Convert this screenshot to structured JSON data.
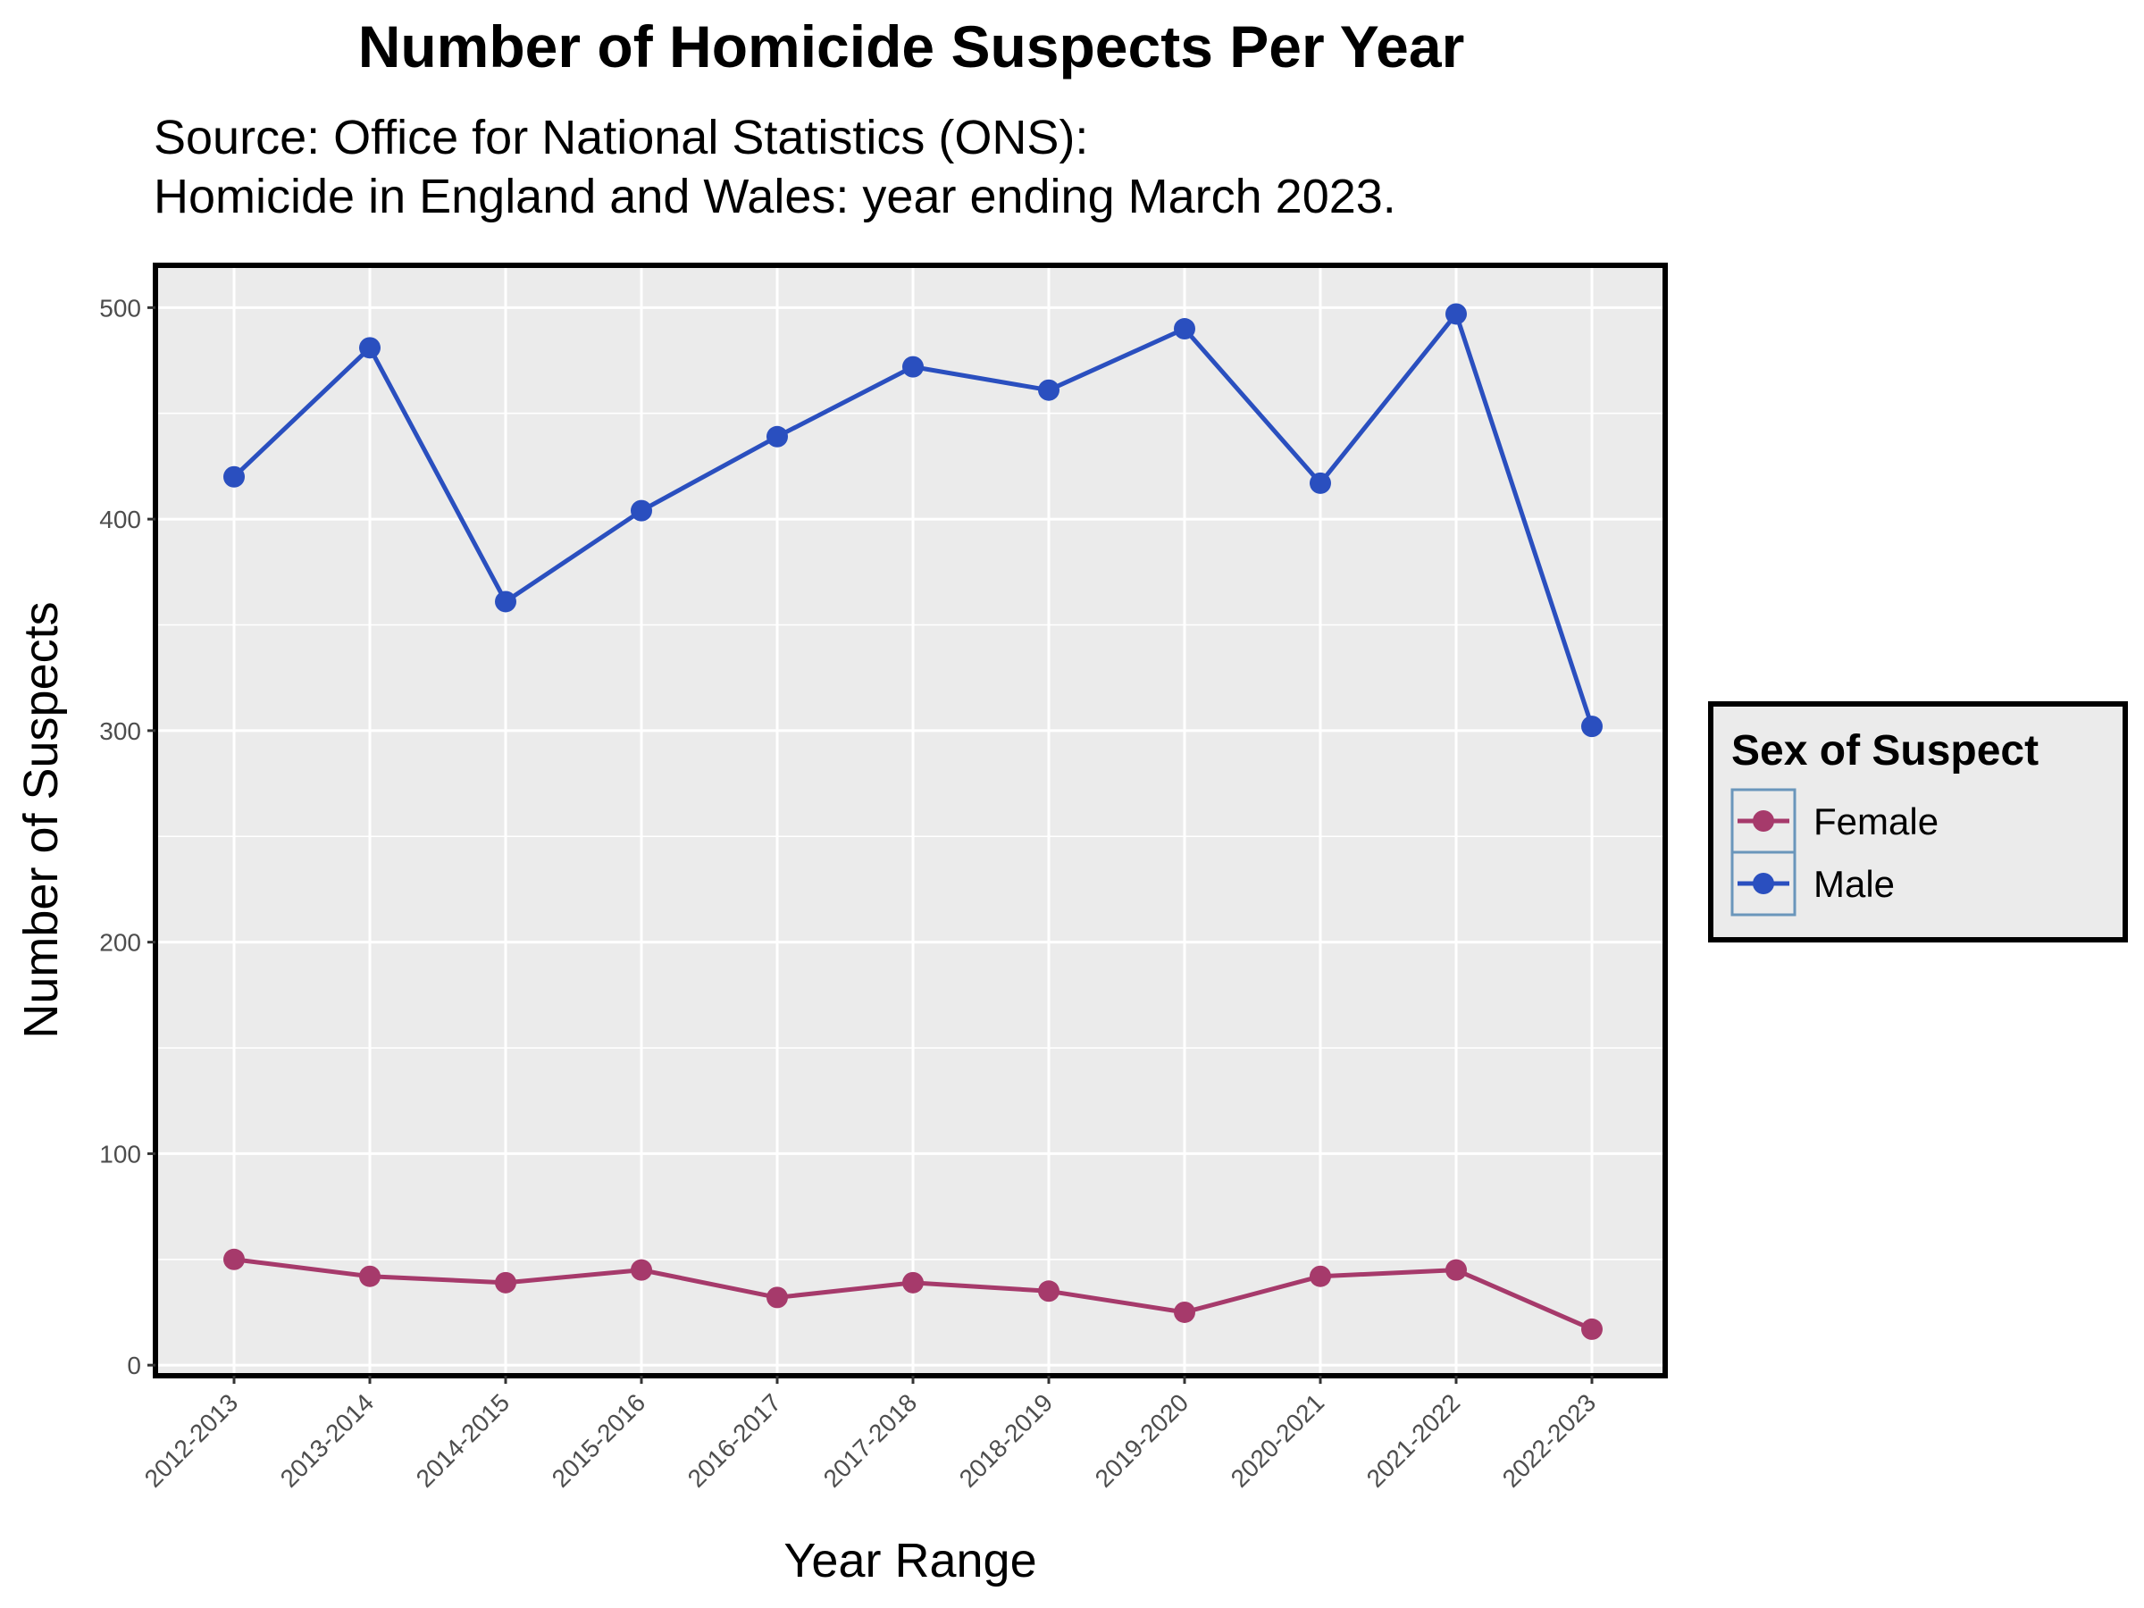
{
  "chart_data": {
    "type": "line",
    "title": "Number of Homicide Suspects Per Year",
    "subtitle_lines": [
      "Source: Office for National Statistics (ONS):",
      "Homicide in England and Wales: year ending March 2023."
    ],
    "xlabel": "Year Range",
    "ylabel": "Number of Suspects",
    "categories": [
      "2012-2013",
      "2013-2014",
      "2014-2015",
      "2015-2016",
      "2016-2017",
      "2017-2018",
      "2018-2019",
      "2019-2020",
      "2020-2021",
      "2021-2022",
      "2022-2023"
    ],
    "ylim": [
      -5,
      520
    ],
    "yticks": [
      0,
      100,
      200,
      300,
      400,
      500
    ],
    "grid": true,
    "legend": {
      "title": "Sex of Suspect",
      "placement": "right"
    },
    "series": [
      {
        "name": "Female",
        "color": "#a63a6b",
        "values": [
          50,
          42,
          39,
          45,
          32,
          39,
          35,
          25,
          42,
          45,
          17
        ]
      },
      {
        "name": "Male",
        "color": "#2a4fbf",
        "values": [
          420,
          481,
          361,
          404,
          439,
          472,
          461,
          490,
          417,
          497,
          302
        ]
      }
    ]
  }
}
